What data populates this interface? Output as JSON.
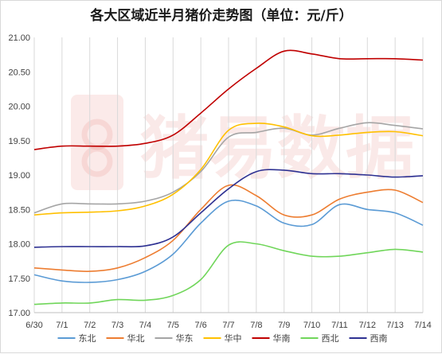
{
  "chart_data": {
    "type": "line",
    "title": "各大区域近半月猪价走势图（单位：元/斤）",
    "x": [
      "6/30",
      "7/1",
      "7/2",
      "7/3",
      "7/4",
      "7/5",
      "7/6",
      "7/7",
      "7/8",
      "7/9",
      "7/10",
      "7/11",
      "7/12",
      "7/13",
      "7/14"
    ],
    "ylim": [
      17.0,
      21.0
    ],
    "yticks": [
      "17.00",
      "17.50",
      "18.00",
      "18.50",
      "19.00",
      "19.50",
      "20.00",
      "20.50",
      "21.00"
    ],
    "grid": "vertical",
    "legend_position": "bottom",
    "watermark": "猪易数据",
    "series": [
      {
        "name": "东北",
        "color": "#5b9bd5",
        "values": [
          17.55,
          17.46,
          17.44,
          17.48,
          17.6,
          17.85,
          18.3,
          18.62,
          18.55,
          18.3,
          18.28,
          18.57,
          18.5,
          18.45,
          18.27
        ]
      },
      {
        "name": "华北",
        "color": "#ed7d31",
        "values": [
          17.65,
          17.62,
          17.6,
          17.65,
          17.8,
          18.05,
          18.5,
          18.85,
          18.7,
          18.42,
          18.42,
          18.65,
          18.75,
          18.78,
          18.6
        ]
      },
      {
        "name": "华东",
        "color": "#a5a5a5",
        "values": [
          18.45,
          18.58,
          18.58,
          18.58,
          18.62,
          18.75,
          19.05,
          19.55,
          19.62,
          19.68,
          19.58,
          19.68,
          19.76,
          19.72,
          19.67
        ]
      },
      {
        "name": "华中",
        "color": "#ffc000",
        "values": [
          18.42,
          18.45,
          18.46,
          18.48,
          18.55,
          18.72,
          19.08,
          19.65,
          19.75,
          19.7,
          19.57,
          19.58,
          19.62,
          19.63,
          19.57
        ]
      },
      {
        "name": "华南",
        "color": "#c00000",
        "values": [
          19.37,
          19.42,
          19.42,
          19.42,
          19.46,
          19.58,
          19.9,
          20.25,
          20.55,
          20.8,
          20.76,
          20.69,
          20.69,
          20.69,
          20.67
        ]
      },
      {
        "name": "西北",
        "color": "#70d65a",
        "values": [
          17.12,
          17.14,
          17.14,
          17.19,
          17.18,
          17.25,
          17.48,
          17.98,
          18.0,
          17.9,
          17.82,
          17.82,
          17.87,
          17.92,
          17.88
        ]
      },
      {
        "name": "西南",
        "color": "#2e3192",
        "values": [
          17.95,
          17.96,
          17.96,
          17.96,
          17.97,
          18.1,
          18.45,
          18.8,
          19.05,
          19.07,
          19.02,
          19.02,
          19.0,
          18.97,
          18.99
        ]
      }
    ]
  }
}
